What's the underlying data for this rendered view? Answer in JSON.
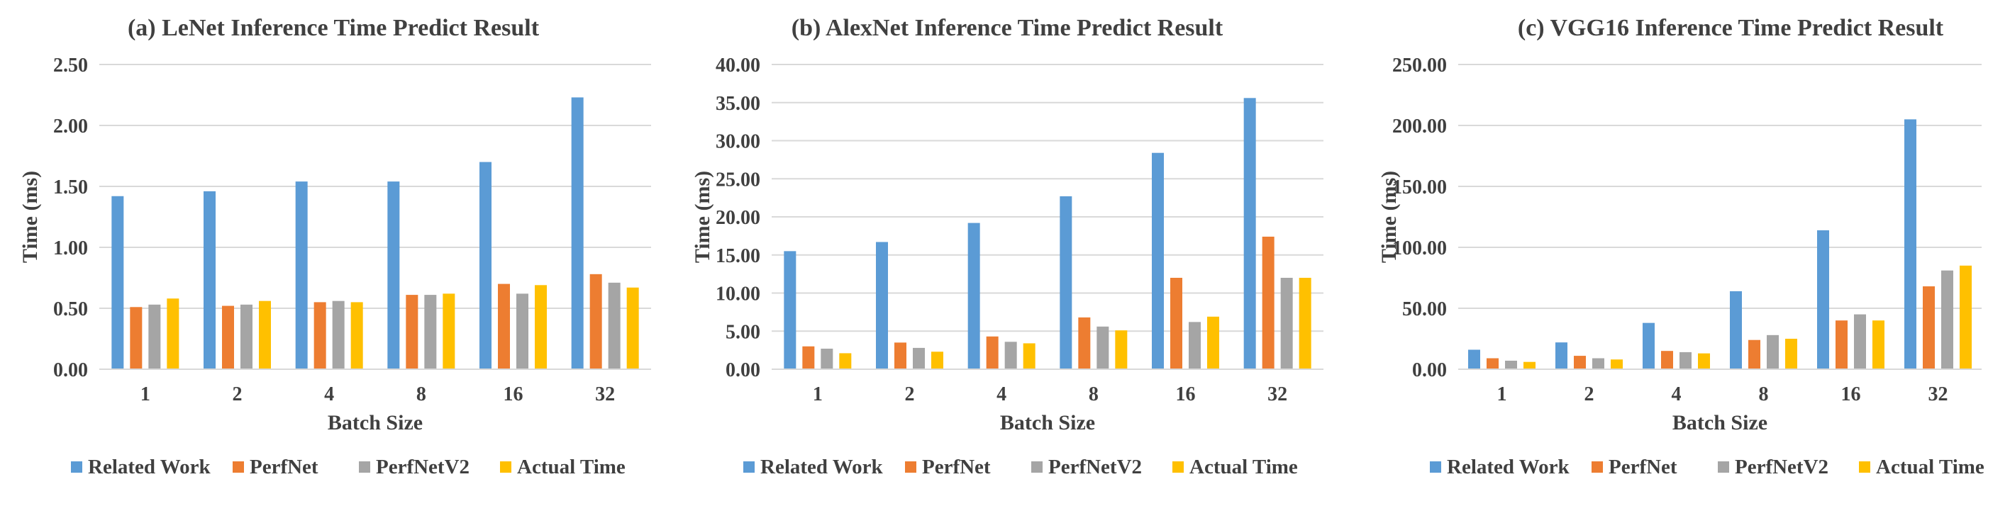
{
  "chart_data": [
    {
      "type": "bar",
      "title": "(a) LeNet Inference Time Predict Result",
      "xlabel": "Batch Size",
      "ylabel": "Time (ms)",
      "ylim": [
        0,
        2.5
      ],
      "yticks": [
        "0.00",
        "0.50",
        "1.00",
        "1.50",
        "2.00",
        "2.50"
      ],
      "ytick_values": [
        0,
        0.5,
        1.0,
        1.5,
        2.0,
        2.5
      ],
      "categories": [
        "1",
        "2",
        "4",
        "8",
        "16",
        "32"
      ],
      "series": [
        {
          "name": "Related Work",
          "values": [
            1.42,
            1.46,
            1.54,
            1.54,
            1.7,
            2.23
          ]
        },
        {
          "name": "PerfNet",
          "values": [
            0.51,
            0.52,
            0.55,
            0.61,
            0.7,
            0.78
          ]
        },
        {
          "name": "PerfNetV2",
          "values": [
            0.53,
            0.53,
            0.56,
            0.61,
            0.62,
            0.71
          ]
        },
        {
          "name": "Actual Time",
          "values": [
            0.58,
            0.56,
            0.55,
            0.62,
            0.69,
            0.67
          ]
        }
      ],
      "grid": true,
      "legend": "bottom"
    },
    {
      "type": "bar",
      "title": "(b) AlexNet Inference Time Predict Result",
      "xlabel": "Batch Size",
      "ylabel": "Time (ms)",
      "ylim": [
        0,
        40
      ],
      "yticks": [
        "0.00",
        "5.00",
        "10.00",
        "15.00",
        "20.00",
        "25.00",
        "30.00",
        "35.00",
        "40.00"
      ],
      "ytick_values": [
        0,
        5,
        10,
        15,
        20,
        25,
        30,
        35,
        40
      ],
      "categories": [
        "1",
        "2",
        "4",
        "8",
        "16",
        "32"
      ],
      "series": [
        {
          "name": "Related Work",
          "values": [
            15.5,
            16.7,
            19.2,
            22.7,
            28.4,
            35.6
          ]
        },
        {
          "name": "PerfNet",
          "values": [
            3.0,
            3.5,
            4.3,
            6.8,
            12.0,
            17.4
          ]
        },
        {
          "name": "PerfNetV2",
          "values": [
            2.7,
            2.8,
            3.6,
            5.6,
            6.2,
            12.0
          ]
        },
        {
          "name": "Actual Time",
          "values": [
            2.1,
            2.3,
            3.4,
            5.1,
            6.9,
            12.0
          ]
        }
      ],
      "grid": true,
      "legend": "bottom"
    },
    {
      "type": "bar",
      "title": "(c) VGG16 Inference Time Predict Result",
      "xlabel": "Batch Size",
      "ylabel": "Time (ms)",
      "ylim": [
        0,
        250
      ],
      "yticks": [
        "0.00",
        "50.00",
        "100.00",
        "150.00",
        "200.00",
        "250.00"
      ],
      "ytick_values": [
        0,
        50,
        100,
        150,
        200,
        250
      ],
      "categories": [
        "1",
        "2",
        "4",
        "8",
        "16",
        "32"
      ],
      "series": [
        {
          "name": "Related Work",
          "values": [
            16,
            22,
            38,
            64,
            114,
            205
          ]
        },
        {
          "name": "PerfNet",
          "values": [
            9,
            11,
            15,
            24,
            40,
            68
          ]
        },
        {
          "name": "PerfNetV2",
          "values": [
            7,
            9,
            14,
            28,
            45,
            81
          ]
        },
        {
          "name": "Actual Time",
          "values": [
            6,
            8,
            13,
            25,
            40,
            85
          ]
        }
      ],
      "grid": true,
      "legend": "bottom"
    }
  ],
  "colors": {
    "Related Work": "#5B9BD5",
    "PerfNet": "#ED7D31",
    "PerfNetV2": "#A5A5A5",
    "Actual Time": "#FFC000",
    "grid": "#D9D9D9",
    "text": "#404040"
  }
}
